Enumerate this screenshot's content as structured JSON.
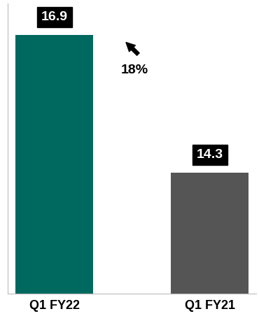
{
  "chart_data": {
    "type": "bar",
    "categories": [
      "Q1 FY22",
      "Q1 FY21"
    ],
    "values": [
      16.9,
      14.3
    ],
    "colors": [
      "#00695f",
      "#555555"
    ],
    "ylim": [
      12,
      17.5
    ],
    "data_labels": true,
    "tick_labels": "x",
    "grid": false,
    "annotations": [
      "18%"
    ]
  }
}
